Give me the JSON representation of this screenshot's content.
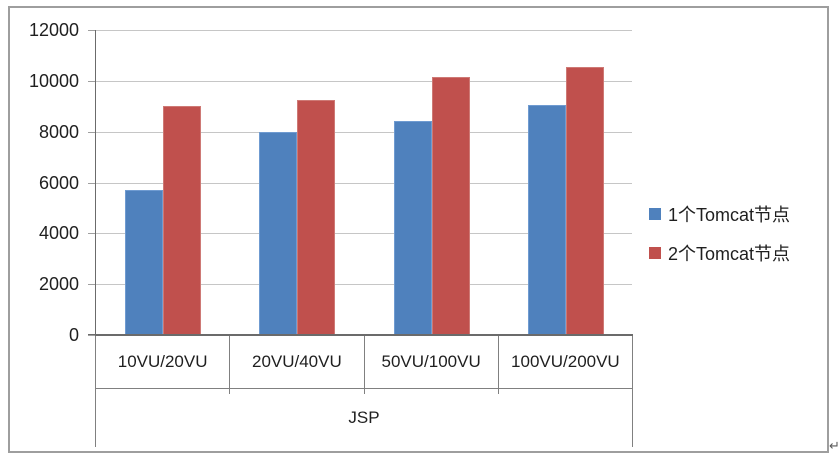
{
  "chart_data": {
    "type": "bar",
    "categories": [
      "10VU/20VU",
      "20VU/40VU",
      "50VU/100VU",
      "100VU/200VU"
    ],
    "series": [
      {
        "name": "1个Tomcat节点",
        "color": "#4F81BD",
        "border_color": "#6F9BD1",
        "values": [
          5700,
          8000,
          8400,
          9050
        ]
      },
      {
        "name": "2个Tomcat节点",
        "color": "#C0504D",
        "border_color": "#CE7975",
        "values": [
          9000,
          9250,
          10150,
          10550
        ]
      }
    ],
    "title": "",
    "xlabel": "JSP",
    "ylabel": "",
    "ylim": [
      0,
      12000
    ],
    "yticks": [
      0,
      2000,
      4000,
      6000,
      8000,
      10000,
      12000
    ],
    "grid": true,
    "legend_position": "right"
  },
  "colors": {
    "gridline": "#c6c6c6",
    "axis": "#6b6b6b",
    "band_line": "#808080",
    "frame_border": "#9e9e9e",
    "text": "#1f1f1f"
  },
  "decoration": {
    "paragraph_mark": "↵"
  }
}
